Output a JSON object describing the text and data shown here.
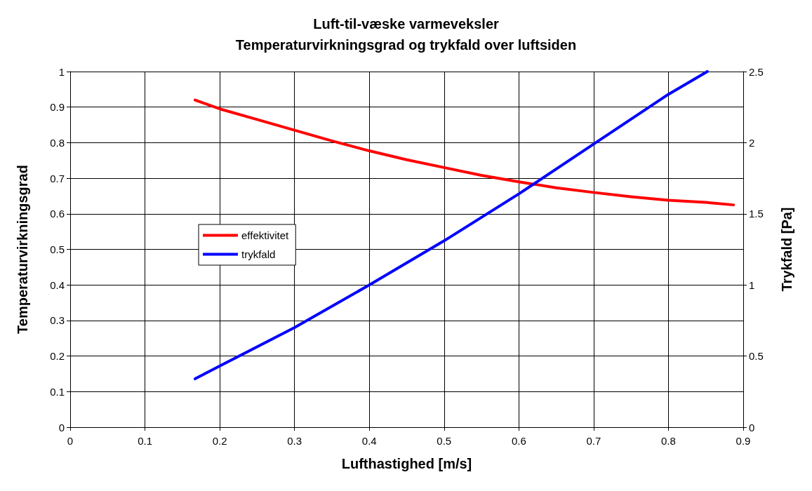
{
  "chart_data": {
    "type": "line",
    "title": "Luft-til-væske varmeveksler\nTemperaturvirkningsgrad og trykfald over luftsiden",
    "xlabel": "Lufthastighed [m/s]",
    "ylabel": "Temperaturvirkningsgrad",
    "y2label": "Trykfald [Pa]",
    "xlim": [
      0,
      0.9
    ],
    "xticks": [
      0,
      0.1,
      0.2,
      0.3,
      0.4,
      0.5,
      0.6,
      0.7,
      0.8,
      0.9
    ],
    "ylim": [
      0,
      1
    ],
    "yticks": [
      0,
      0.1,
      0.2,
      0.3,
      0.4,
      0.5,
      0.6,
      0.7,
      0.8,
      0.9,
      1
    ],
    "y2lim": [
      0,
      2.5
    ],
    "y2ticks": [
      0,
      0.5,
      1,
      1.5,
      2,
      2.5
    ],
    "grid": true,
    "legend": "left",
    "marker": "none",
    "line_style": "solid",
    "series": [
      {
        "name": "effektivitet",
        "color": "#ff0000",
        "x": [
          0.167,
          0.2,
          0.25,
          0.3,
          0.35,
          0.4,
          0.45,
          0.5,
          0.55,
          0.6,
          0.65,
          0.7,
          0.75,
          0.8,
          0.85,
          0.887
        ],
        "values": [
          0.92,
          0.895,
          0.865,
          0.835,
          0.805,
          0.777,
          0.752,
          0.73,
          0.708,
          0.69,
          0.673,
          0.66,
          0.648,
          0.638,
          0.632,
          0.625
        ]
      },
      {
        "name": "trykfald",
        "color": "#0000ff",
        "axis": "y2",
        "x": [
          0.167,
          0.2,
          0.3,
          0.4,
          0.5,
          0.6,
          0.7,
          0.8,
          0.852
        ],
        "values": [
          0.34,
          0.43,
          0.7,
          1.0,
          1.31,
          1.64,
          1.99,
          2.34,
          2.5
        ]
      }
    ]
  }
}
